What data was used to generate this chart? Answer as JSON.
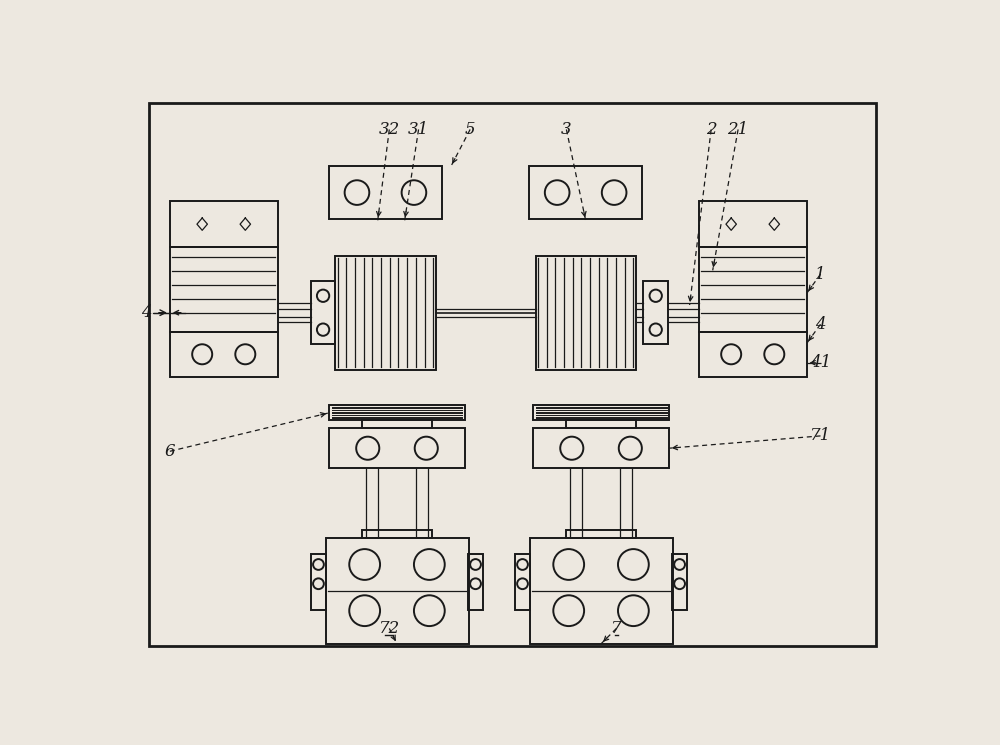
{
  "bg_color": "#ede8e0",
  "line_color": "#1a1a1a",
  "fig_w": 10.0,
  "fig_h": 7.45,
  "dpi": 100,
  "lw_main": 1.4,
  "lw_thin": 0.9,
  "lw_rib": 0.8
}
